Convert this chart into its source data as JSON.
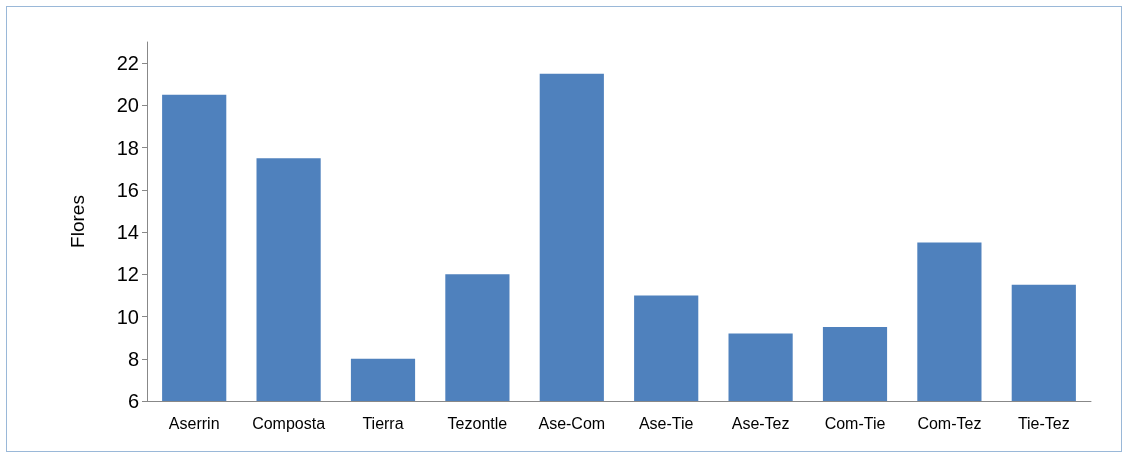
{
  "chart_data": {
    "type": "bar",
    "ylabel": "Flores",
    "categories": [
      "Aserrin",
      "Composta",
      "Tierra",
      "Tezontle",
      "Ase-Com",
      "Ase-Tie",
      "Ase-Tez",
      "Com-Tie",
      "Com-Tez",
      "Tie-Tez"
    ],
    "values": [
      20.5,
      17.5,
      8,
      12,
      21.5,
      11,
      9.2,
      9.5,
      13.5,
      11.5
    ],
    "color": "#4f81bd",
    "ylim": [
      6,
      23
    ],
    "yticks": [
      6,
      8,
      10,
      12,
      14,
      16,
      18,
      20,
      22
    ],
    "grid": false
  }
}
